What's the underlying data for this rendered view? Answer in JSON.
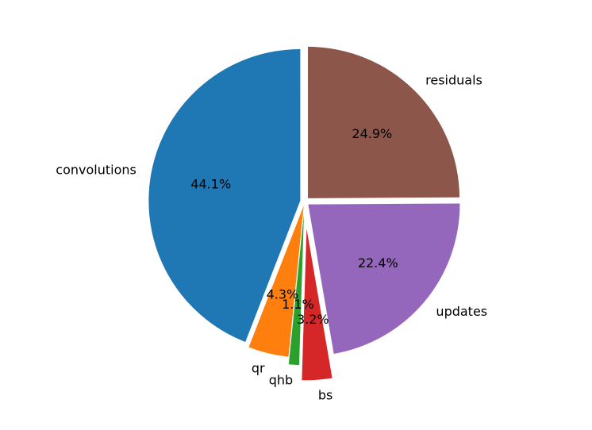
{
  "chart_data": {
    "type": "pie",
    "title": "",
    "slices": [
      {
        "name": "convolutions",
        "value": 44.1,
        "pct_label": "44.1%",
        "color": "#1f77b4",
        "explode": 0.03
      },
      {
        "name": "qr",
        "value": 4.3,
        "pct_label": "4.3%",
        "color": "#ff7f0e",
        "explode": 0.03
      },
      {
        "name": "qhb",
        "value": 1.1,
        "pct_label": "1.1%",
        "color": "#2ca02c",
        "explode": 0.08
      },
      {
        "name": "bs",
        "value": 3.2,
        "pct_label": "3.2%",
        "color": "#d62728",
        "explode": 0.18
      },
      {
        "name": "updates",
        "value": 22.4,
        "pct_label": "22.4%",
        "color": "#9467bd",
        "explode": 0.03
      },
      {
        "name": "residuals",
        "value": 24.9,
        "pct_label": "24.9%",
        "color": "#8c564b",
        "explode": 0.03
      }
    ],
    "start_angle_deg": 90,
    "direction": "counterclockwise",
    "legend": "none"
  }
}
